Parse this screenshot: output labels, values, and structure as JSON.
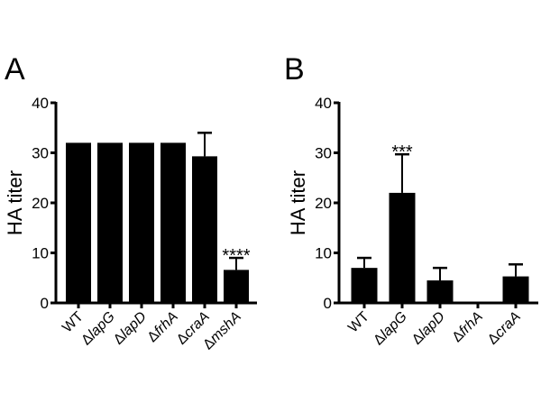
{
  "chart_data": [
    {
      "type": "bar",
      "panel_label": "A",
      "ylabel": "HA titer",
      "ylim": [
        0,
        40
      ],
      "yticks": [
        "0",
        "10",
        "20",
        "30",
        "40"
      ],
      "categories": [
        {
          "prefix": "",
          "name": "WT"
        },
        {
          "prefix": "Δ",
          "name": "lapG"
        },
        {
          "prefix": "Δ",
          "name": "lapD"
        },
        {
          "prefix": "Δ",
          "name": "frhA"
        },
        {
          "prefix": "Δ",
          "name": "craA"
        },
        {
          "prefix": "Δ",
          "name": "mshA"
        }
      ],
      "values": [
        32,
        32,
        32,
        32,
        29.3,
        6.6
      ],
      "error_upper": [
        32,
        32,
        32,
        32,
        34,
        9
      ],
      "annotations": [
        "",
        "",
        "",
        "",
        "",
        "****"
      ]
    },
    {
      "type": "bar",
      "panel_label": "B",
      "ylabel": "HA titer",
      "ylim": [
        0,
        40
      ],
      "yticks": [
        "0",
        "10",
        "20",
        "30",
        "40"
      ],
      "categories": [
        {
          "prefix": "",
          "name": "WT"
        },
        {
          "prefix": "Δ",
          "name": "lapG"
        },
        {
          "prefix": "Δ",
          "name": "lapD"
        },
        {
          "prefix": "Δ",
          "name": "frhA"
        },
        {
          "prefix": "Δ",
          "name": "craA"
        }
      ],
      "values": [
        7,
        22,
        4.5,
        0,
        5.3
      ],
      "error_upper": [
        9,
        29.7,
        7,
        0,
        7.7
      ],
      "annotations": [
        "",
        "***",
        "",
        "",
        ""
      ]
    }
  ]
}
